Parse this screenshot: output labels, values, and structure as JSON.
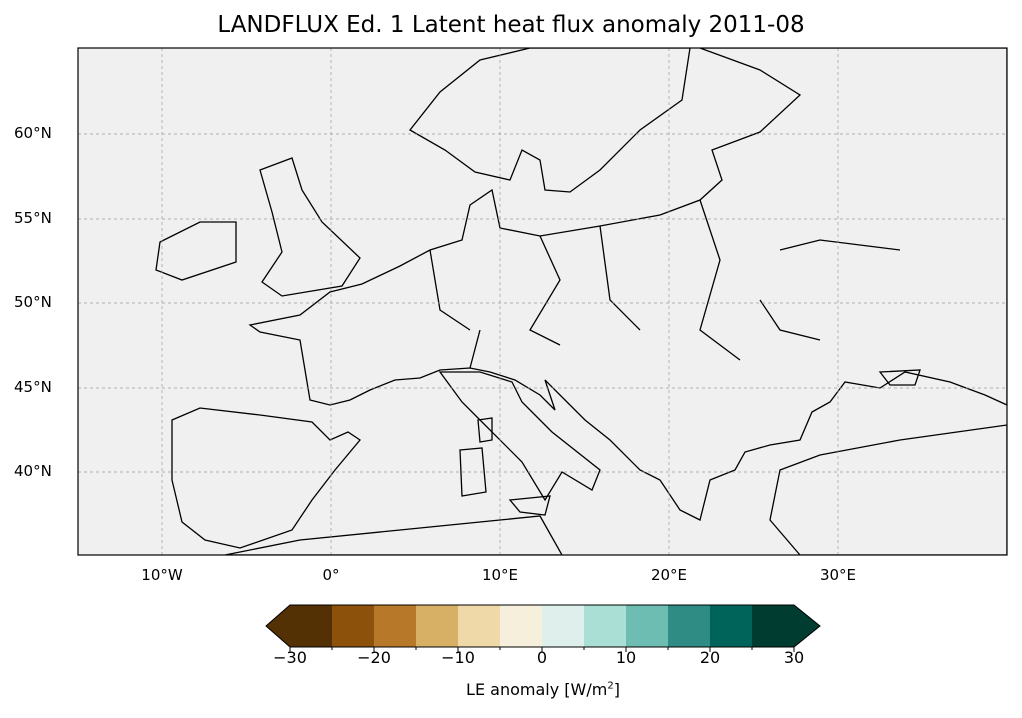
{
  "title": "LANDFLUX Ed. 1 Latent heat flux anomaly 2011-08",
  "map": {
    "extent": {
      "lon": [
        -15,
        40
      ],
      "lat": [
        35,
        65
      ]
    },
    "lat_labels": [
      "60°N",
      "55°N",
      "50°N",
      "45°N",
      "40°N"
    ],
    "lon_labels": [
      "10°W",
      "0°",
      "10°E",
      "20°E",
      "30°E"
    ],
    "ocean_color": "#f0f0f0"
  },
  "colorbar": {
    "label_text": "LE anomaly [W/m",
    "label_sup": "2",
    "label_close": "]",
    "levels": [
      -30,
      -25,
      -20,
      -15,
      -10,
      -5,
      0,
      5,
      10,
      15,
      20,
      25,
      30
    ],
    "colors": [
      "#543005",
      "#8c510a",
      "#b87829",
      "#d8b065",
      "#efd9a8",
      "#f5efdc",
      "#dfefec",
      "#aadfd6",
      "#6dbdb2",
      "#2e8c85",
      "#00645b",
      "#003c30"
    ],
    "extend_low": "#543005",
    "extend_high": "#003c30",
    "ticks": [
      "−30",
      "−20",
      "−10",
      "0",
      "10",
      "20",
      "30"
    ]
  }
}
